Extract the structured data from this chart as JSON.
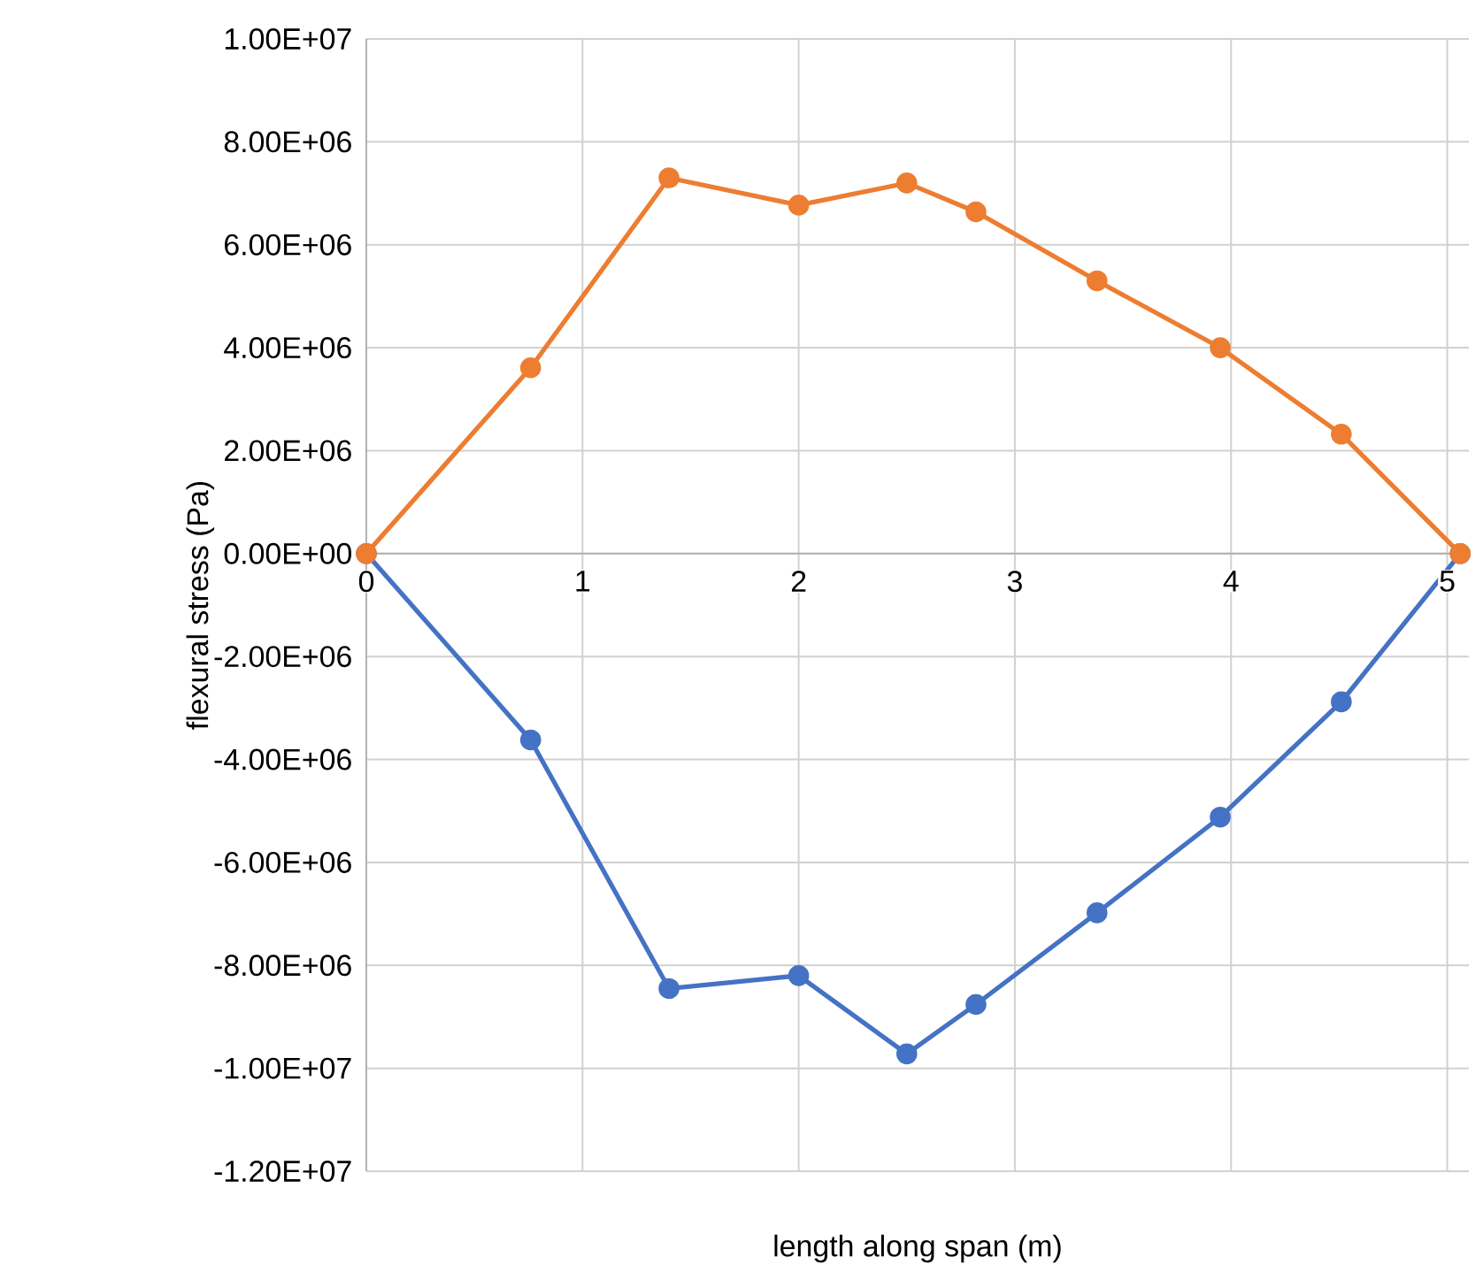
{
  "chart_data": {
    "type": "line",
    "xlabel": "length along span (m)",
    "ylabel": "flexural stress (Pa)",
    "xlim": [
      0,
      5.1
    ],
    "xticks": [
      0,
      1,
      2,
      3,
      4,
      5
    ],
    "ylim": [
      -12000000,
      10000000
    ],
    "yticks": [
      {
        "value": -12000000,
        "label": "-1.20E+07"
      },
      {
        "value": -10000000,
        "label": "-1.00E+07"
      },
      {
        "value": -8000000,
        "label": "-8.00E+06"
      },
      {
        "value": -6000000,
        "label": "-6.00E+06"
      },
      {
        "value": -4000000,
        "label": "-4.00E+06"
      },
      {
        "value": -2000000,
        "label": "-2.00E+06"
      },
      {
        "value": 0,
        "label": "0.00E+00"
      },
      {
        "value": 2000000,
        "label": "2.00E+06"
      },
      {
        "value": 4000000,
        "label": "4.00E+06"
      },
      {
        "value": 6000000,
        "label": "6.00E+06"
      },
      {
        "value": 8000000,
        "label": "8.00E+06"
      },
      {
        "value": 10000000,
        "label": "1.00E+07"
      }
    ],
    "x": [
      0,
      0.76,
      1.4,
      2.0,
      2.5,
      2.82,
      3.38,
      3.95,
      4.51,
      5.06
    ],
    "series": [
      {
        "color": "#4472c4",
        "values": [
          0,
          -3620000,
          -8450000,
          -8200000,
          -9720000,
          -8760000,
          -6980000,
          -5120000,
          -2880000,
          0
        ]
      },
      {
        "color": "#ed7d31",
        "values": [
          0,
          3610000,
          7300000,
          6770000,
          7200000,
          6640000,
          5300000,
          4000000,
          2320000,
          0
        ]
      }
    ],
    "grid": true,
    "marker": "circle",
    "line_style": "solid"
  }
}
